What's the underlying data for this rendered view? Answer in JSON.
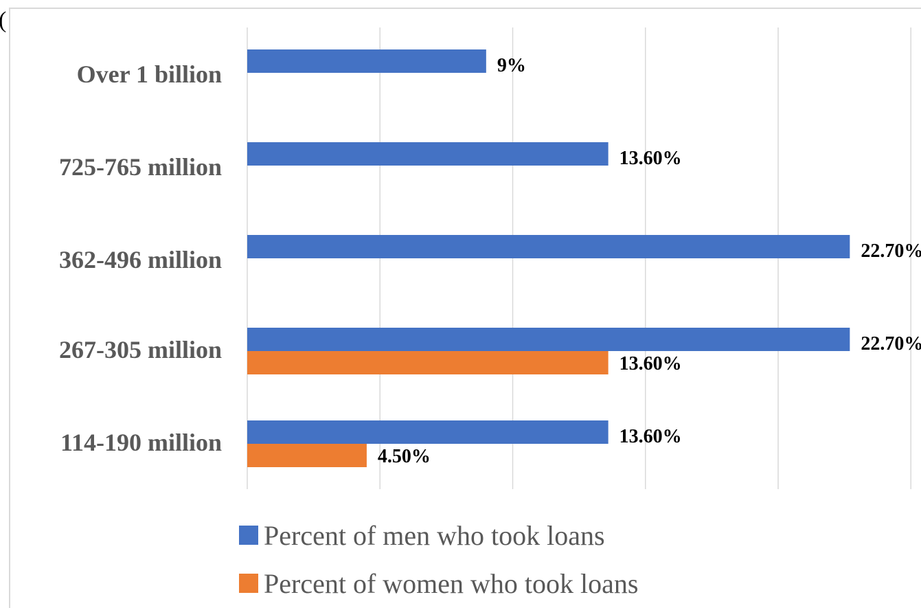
{
  "page": {
    "top_clipped_text": "("
  },
  "chart_data": {
    "type": "bar",
    "orientation": "horizontal",
    "categories": [
      "Over 1 billion",
      "725-765 million",
      "362-496 million",
      "267-305 million",
      "114-190 million"
    ],
    "series": [
      {
        "name": "Percent of men who took loans",
        "color": "#4472C4",
        "values": [
          9,
          13.6,
          22.7,
          22.7,
          13.6
        ],
        "labels": [
          "9%",
          "13.60%",
          "22.70%",
          "22.70%",
          "13.60%"
        ]
      },
      {
        "name": "Percent of women who took loans",
        "color": "#ED7D31",
        "values": [
          null,
          null,
          null,
          13.6,
          4.5
        ],
        "labels": [
          "",
          "",
          "",
          "13.60%",
          "4.50%"
        ]
      }
    ],
    "xlim": [
      0,
      25
    ],
    "grid": true,
    "legend_position": "bottom"
  }
}
